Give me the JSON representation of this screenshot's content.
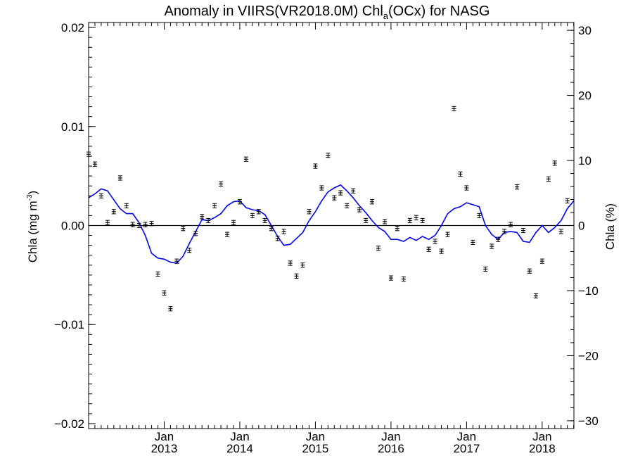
{
  "chart_data": {
    "type": "line",
    "title": "Anomaly in VIIRS(VR2018.0M) Chl",
    "title_sub": "a",
    "title_tail": "(OCx) for NASG",
    "ylabel": "Chla (mg m",
    "ylabel_sup": "-3",
    "ylabel_tail": ")",
    "y2label": "Chla (%)",
    "xlim": [
      2012.0,
      2018.42
    ],
    "ylim": [
      -0.0205,
      0.0205
    ],
    "y2lim": [
      -31.2,
      31.2
    ],
    "grid": false,
    "yticks": [
      {
        "value": 0.02,
        "label": "0.02"
      },
      {
        "value": 0.01,
        "label": "0.01"
      },
      {
        "value": 0.0,
        "label": "0.00"
      },
      {
        "value": -0.01,
        "label": "−0.01"
      },
      {
        "value": -0.02,
        "label": "−0.02"
      }
    ],
    "y2ticks": [
      {
        "value": 30,
        "label": "30"
      },
      {
        "value": 20,
        "label": "20"
      },
      {
        "value": 10,
        "label": "10"
      },
      {
        "value": 0,
        "label": "0"
      },
      {
        "value": -10,
        "label": "−10"
      },
      {
        "value": -20,
        "label": "−20"
      },
      {
        "value": -30,
        "label": "−30"
      }
    ],
    "xticks": [
      {
        "value": 2013.0,
        "month": "Jan",
        "year": "2013"
      },
      {
        "value": 2014.0,
        "month": "Jan",
        "year": "2014"
      },
      {
        "value": 2015.0,
        "month": "Jan",
        "year": "2015"
      },
      {
        "value": 2016.0,
        "month": "Jan",
        "year": "2016"
      },
      {
        "value": 2017.0,
        "month": "Jan",
        "year": "2017"
      },
      {
        "value": 2018.0,
        "month": "Jan",
        "year": "2018"
      }
    ],
    "zero_line": 0.0,
    "monthly_points": {
      "x": [
        2012.0,
        2012.083,
        2012.167,
        2012.25,
        2012.333,
        2012.417,
        2012.5,
        2012.583,
        2012.667,
        2012.75,
        2012.833,
        2012.917,
        2013.0,
        2013.083,
        2013.167,
        2013.25,
        2013.333,
        2013.417,
        2013.5,
        2013.583,
        2013.667,
        2013.75,
        2013.833,
        2013.917,
        2014.0,
        2014.083,
        2014.167,
        2014.25,
        2014.333,
        2014.417,
        2014.5,
        2014.583,
        2014.667,
        2014.75,
        2014.833,
        2014.917,
        2015.0,
        2015.083,
        2015.167,
        2015.25,
        2015.333,
        2015.417,
        2015.5,
        2015.583,
        2015.667,
        2015.75,
        2015.833,
        2015.917,
        2016.0,
        2016.083,
        2016.167,
        2016.25,
        2016.333,
        2016.417,
        2016.5,
        2016.583,
        2016.667,
        2016.75,
        2016.833,
        2016.917,
        2017.0,
        2017.083,
        2017.167,
        2017.25,
        2017.333,
        2017.417,
        2017.5,
        2017.583,
        2017.667,
        2017.75,
        2017.833,
        2017.917,
        2018.0,
        2018.083,
        2018.167,
        2018.25,
        2018.333
      ],
      "y": [
        0.0072,
        0.0062,
        0.003,
        0.0003,
        0.0014,
        0.0048,
        0.002,
        0.0001,
        0.0,
        0.0001,
        0.0002,
        -0.0049,
        -0.0068,
        -0.0084,
        -0.0036,
        -0.0003,
        -0.0025,
        -0.0008,
        0.0009,
        0.0005,
        0.002,
        0.0042,
        -0.0009,
        0.0003,
        0.0024,
        0.0067,
        0.001,
        0.0014,
        0.0005,
        -0.0003,
        -0.0013,
        -0.0006,
        -0.0038,
        -0.0051,
        -0.004,
        0.0014,
        0.006,
        0.0038,
        0.0071,
        0.0028,
        0.0033,
        0.002,
        0.0035,
        0.0016,
        0.0005,
        0.0024,
        -0.0023,
        0.0004,
        -0.0053,
        -0.0003,
        -0.0054,
        0.0005,
        0.0008,
        0.0005,
        -0.0024,
        -0.0016,
        -0.0026,
        -0.0009,
        0.0118,
        0.0052,
        0.0038,
        -0.0017,
        0.001,
        -0.0044,
        -0.0021,
        -0.0014,
        -0.0006,
        0.0001,
        0.0039,
        -0.0005,
        -0.0046,
        -0.0071,
        -0.0036,
        0.0047,
        0.0063,
        -0.0006,
        0.0025
      ],
      "error": 0.00022
    },
    "series": [
      {
        "color": "#0000ee",
        "x": [
          2012.0,
          2012.083,
          2012.167,
          2012.25,
          2012.333,
          2012.417,
          2012.5,
          2012.583,
          2012.667,
          2012.75,
          2012.833,
          2012.917,
          2013.0,
          2013.083,
          2013.167,
          2013.25,
          2013.333,
          2013.417,
          2013.5,
          2013.583,
          2013.667,
          2013.75,
          2013.833,
          2013.917,
          2014.0,
          2014.083,
          2014.167,
          2014.25,
          2014.333,
          2014.417,
          2014.5,
          2014.583,
          2014.667,
          2014.75,
          2014.833,
          2014.917,
          2015.0,
          2015.083,
          2015.167,
          2015.25,
          2015.333,
          2015.417,
          2015.5,
          2015.583,
          2015.667,
          2015.75,
          2015.833,
          2015.917,
          2016.0,
          2016.083,
          2016.167,
          2016.25,
          2016.333,
          2016.417,
          2016.5,
          2016.583,
          2016.667,
          2016.75,
          2016.833,
          2016.917,
          2017.0,
          2017.083,
          2017.167,
          2017.25,
          2017.333,
          2017.417,
          2017.5,
          2017.583,
          2017.667,
          2017.75,
          2017.833,
          2017.917,
          2018.0,
          2018.083,
          2018.167,
          2018.25,
          2018.333,
          2018.42
        ],
        "y": [
          0.0028,
          0.0032,
          0.0037,
          0.0035,
          0.0026,
          0.0017,
          0.0012,
          0.0012,
          0.0003,
          -0.001,
          -0.0028,
          -0.0033,
          -0.0034,
          -0.0037,
          -0.0038,
          -0.0031,
          -0.0018,
          -0.0006,
          0.0006,
          0.0005,
          0.0008,
          0.0012,
          0.002,
          0.0024,
          0.0025,
          0.0018,
          0.0016,
          0.0015,
          0.0011,
          0.0,
          -0.0011,
          -0.002,
          -0.0019,
          -0.0013,
          -0.0007,
          0.0005,
          0.0014,
          0.0025,
          0.0034,
          0.0038,
          0.0041,
          0.0035,
          0.0028,
          0.002,
          0.0013,
          0.0005,
          -0.0002,
          -0.0006,
          -0.0014,
          -0.0014,
          -0.0016,
          -0.0012,
          -0.0015,
          -0.0011,
          -0.0014,
          -0.001,
          0.0,
          0.0012,
          0.0017,
          0.0019,
          0.0023,
          0.0021,
          0.0019,
          0.0,
          -0.0009,
          -0.0014,
          -0.0007,
          -0.0006,
          -0.0007,
          -0.0016,
          -0.0017,
          -0.0007,
          0.0,
          -0.0007,
          -0.0002,
          0.0005,
          0.0017,
          0.0025
        ]
      }
    ]
  }
}
